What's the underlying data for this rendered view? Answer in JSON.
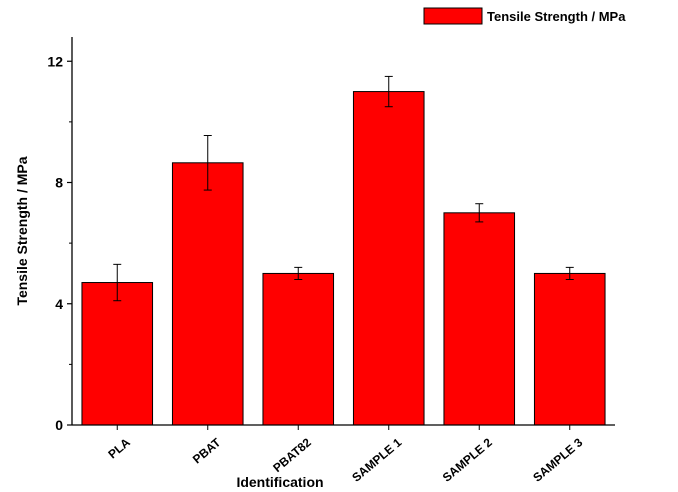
{
  "chart_data": {
    "type": "bar",
    "categories": [
      "PLA",
      "PBAT",
      "PBAT82",
      "SAMPLE 1",
      "SAMPLE 2",
      "SAMPLE 3"
    ],
    "series": [
      {
        "name": "Tensile Strength / MPa",
        "values": [
          4.7,
          8.65,
          5.0,
          11.0,
          7.0,
          5.0
        ],
        "errors": [
          0.6,
          0.9,
          0.2,
          0.5,
          0.3,
          0.2
        ],
        "color": "#ff0000"
      }
    ],
    "xlabel": "Identification",
    "ylabel": "Tensile Strength / MPa",
    "ylim": [
      0,
      12.8
    ],
    "yticks": [
      0,
      4,
      8,
      12
    ],
    "grid": false,
    "legend_position": "top-right"
  }
}
